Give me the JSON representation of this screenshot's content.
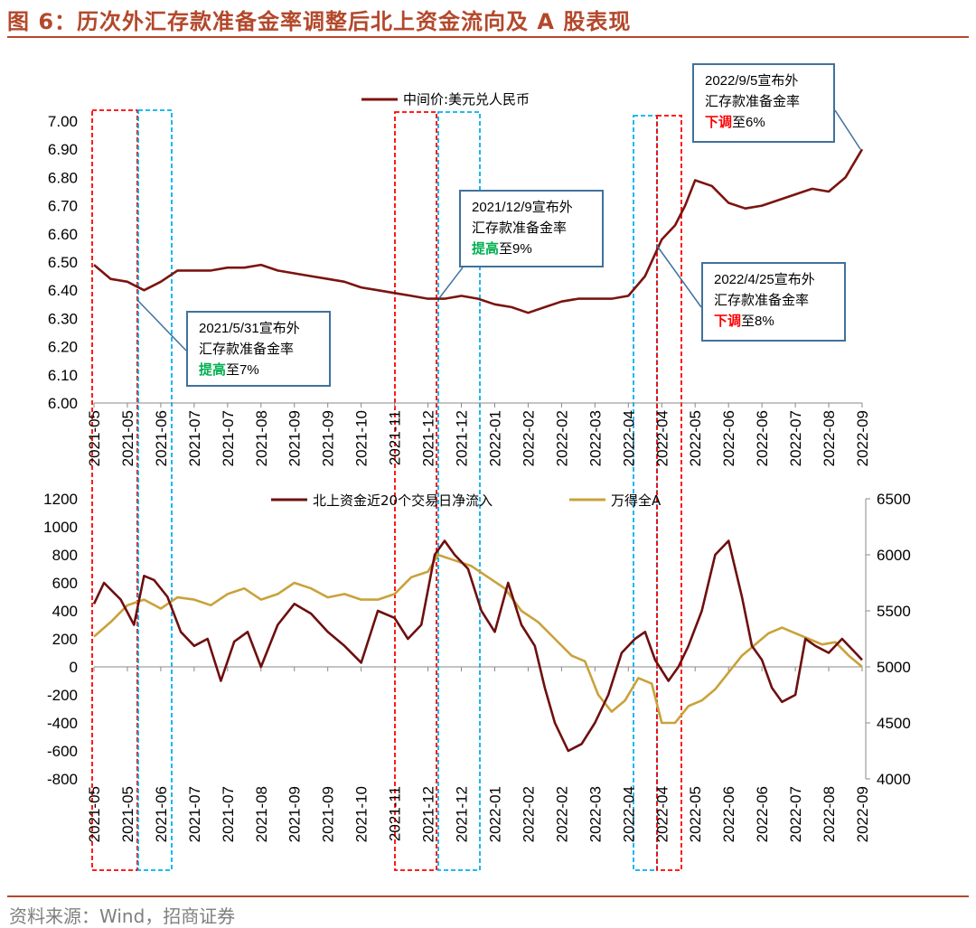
{
  "title": "图 6：历次外汇存款准备金率调整后北上资金流向及 A 股表现",
  "source": "资料来源：Wind，招商证券",
  "colors": {
    "accent": "#b3482b",
    "cny_line": "#7b1410",
    "north_line": "#6e0f0f",
    "wind_a_line": "#c9a23a",
    "raise_box": "#ff0000",
    "cut_box": "#00b0f0",
    "callout_border": "#41719c",
    "hl_red": "#ff0000",
    "hl_green": "#00b050"
  },
  "callouts": [
    {
      "date": "2021/5/31宣布外",
      "line2": "汇存款准备金率",
      "action": "提高",
      "action_color": "green",
      "suffix": "至7%"
    },
    {
      "date": "2021/12/9宣布外",
      "line2": "汇存款准备金率",
      "action": "提高",
      "action_color": "green",
      "suffix": "至9%"
    },
    {
      "date": "2022/4/25宣布外",
      "line2": "汇存款准备金率",
      "action": "下调",
      "action_color": "red",
      "suffix": "至8%"
    },
    {
      "date": "2022/9/5宣布外",
      "line2": "汇存款准备金率",
      "action": "下调",
      "action_color": "red",
      "suffix": "至6%"
    }
  ],
  "chart_data": [
    {
      "type": "line",
      "legend": [
        "中间价:美元兑人民币"
      ],
      "x_tick_labels": [
        "2021-05",
        "2021-05",
        "2021-06",
        "2021-07",
        "2021-07",
        "2021-08",
        "2021-09",
        "2021-09",
        "2021-10",
        "2021-11",
        "2021-12",
        "2021-12",
        "2022-01",
        "2022-02",
        "2022-02",
        "2022-03",
        "2022-04",
        "2022-04",
        "2022-05",
        "2022-06",
        "2022-06",
        "2022-07",
        "2022-08",
        "2022-09"
      ],
      "y_ticks": [
        "6.00",
        "6.10",
        "6.20",
        "6.30",
        "6.40",
        "6.50",
        "6.60",
        "6.70",
        "6.80",
        "6.90",
        "7.00"
      ],
      "ylim": [
        6.0,
        7.0
      ],
      "series": [
        {
          "name": "中间价:美元兑人民币",
          "x": [
            0,
            0.5,
            1,
            1.5,
            2,
            2.5,
            3,
            3.5,
            4,
            4.5,
            5,
            5.5,
            6,
            6.5,
            7,
            7.5,
            8,
            8.5,
            9,
            9.5,
            10,
            10.5,
            11,
            11.5,
            12,
            12.5,
            13,
            13.5,
            14,
            14.5,
            15,
            15.5,
            16,
            16.5,
            17,
            17.4,
            17.7,
            18,
            18.5,
            19,
            19.5,
            20,
            20.5,
            21,
            21.5,
            22,
            22.5,
            23
          ],
          "y": [
            6.49,
            6.44,
            6.43,
            6.4,
            6.43,
            6.47,
            6.47,
            6.47,
            6.48,
            6.48,
            6.49,
            6.47,
            6.46,
            6.45,
            6.44,
            6.43,
            6.41,
            6.4,
            6.39,
            6.38,
            6.37,
            6.37,
            6.38,
            6.37,
            6.35,
            6.34,
            6.32,
            6.34,
            6.36,
            6.37,
            6.37,
            6.37,
            6.38,
            6.45,
            6.58,
            6.63,
            6.7,
            6.79,
            6.77,
            6.71,
            6.69,
            6.7,
            6.72,
            6.74,
            6.76,
            6.75,
            6.8,
            6.9
          ]
        }
      ]
    },
    {
      "type": "line",
      "legend": [
        "北上资金近20个交易日净流入",
        "万得全A"
      ],
      "x_tick_labels": [
        "2021-05",
        "2021-05",
        "2021-06",
        "2021-07",
        "2021-07",
        "2021-08",
        "2021-09",
        "2021-09",
        "2021-10",
        "2021-11",
        "2021-12",
        "2021-12",
        "2022-01",
        "2022-02",
        "2022-02",
        "2022-03",
        "2022-04",
        "2022-04",
        "2022-05",
        "2022-06",
        "2022-06",
        "2022-07",
        "2022-08",
        "2022-09"
      ],
      "y_ticks_left": [
        "-800",
        "-600",
        "-400",
        "-200",
        "0",
        "200",
        "400",
        "600",
        "800",
        "1000",
        "1200"
      ],
      "y_ticks_right": [
        "4000",
        "4500",
        "5000",
        "5500",
        "6000",
        "6500"
      ],
      "ylim_left": [
        -800,
        1200
      ],
      "ylim_right": [
        4000,
        6500
      ],
      "series": [
        {
          "name": "北上资金近20个交易日净流入",
          "axis": "left",
          "x": [
            0,
            0.3,
            0.8,
            1.2,
            1.5,
            1.8,
            2.2,
            2.6,
            3,
            3.4,
            3.8,
            4.2,
            4.6,
            5,
            5.5,
            6,
            6.5,
            7,
            7.5,
            8,
            8.5,
            9,
            9.4,
            9.8,
            10.2,
            10.5,
            10.8,
            11.2,
            11.6,
            12,
            12.4,
            12.8,
            13.2,
            13.5,
            13.8,
            14.2,
            14.6,
            15,
            15.4,
            15.8,
            16.2,
            16.5,
            16.8,
            17.2,
            17.5,
            17.8,
            18.2,
            18.6,
            19,
            19.4,
            19.7,
            20,
            20.3,
            20.6,
            21,
            21.3,
            21.6,
            22,
            22.4,
            22.8,
            23
          ],
          "y": [
            450,
            600,
            480,
            300,
            650,
            620,
            500,
            250,
            150,
            200,
            -100,
            180,
            250,
            0,
            300,
            450,
            380,
            250,
            150,
            30,
            400,
            350,
            200,
            300,
            800,
            900,
            800,
            700,
            400,
            250,
            600,
            300,
            150,
            -150,
            -400,
            -600,
            -550,
            -400,
            -200,
            100,
            200,
            250,
            50,
            -100,
            0,
            150,
            400,
            800,
            900,
            500,
            150,
            50,
            -150,
            -250,
            -200,
            200,
            150,
            100,
            200,
            100,
            50
          ]
        },
        {
          "name": "万得全A",
          "axis": "right",
          "x": [
            0,
            0.5,
            1,
            1.5,
            2,
            2.5,
            3,
            3.5,
            4,
            4.5,
            5,
            5.5,
            6,
            6.5,
            7,
            7.5,
            8,
            8.5,
            9,
            9.5,
            10,
            10.3,
            10.8,
            11.3,
            11.8,
            12.3,
            12.8,
            13.3,
            13.8,
            14.3,
            14.7,
            15.1,
            15.5,
            15.9,
            16.3,
            16.7,
            17,
            17.4,
            17.8,
            18.2,
            18.6,
            19,
            19.4,
            19.8,
            20.2,
            20.6,
            21,
            21.4,
            21.8,
            22.2,
            22.6,
            23
          ],
          "y": [
            5270,
            5400,
            5550,
            5600,
            5520,
            5620,
            5600,
            5550,
            5650,
            5700,
            5600,
            5650,
            5750,
            5700,
            5620,
            5650,
            5600,
            5600,
            5650,
            5800,
            5850,
            6000,
            5950,
            5900,
            5800,
            5700,
            5500,
            5400,
            5250,
            5100,
            5050,
            4750,
            4600,
            4700,
            4900,
            4850,
            4500,
            4500,
            4650,
            4700,
            4800,
            4950,
            5100,
            5200,
            5300,
            5350,
            5300,
            5250,
            5200,
            5220,
            5100,
            5000
          ]
        }
      ]
    }
  ]
}
